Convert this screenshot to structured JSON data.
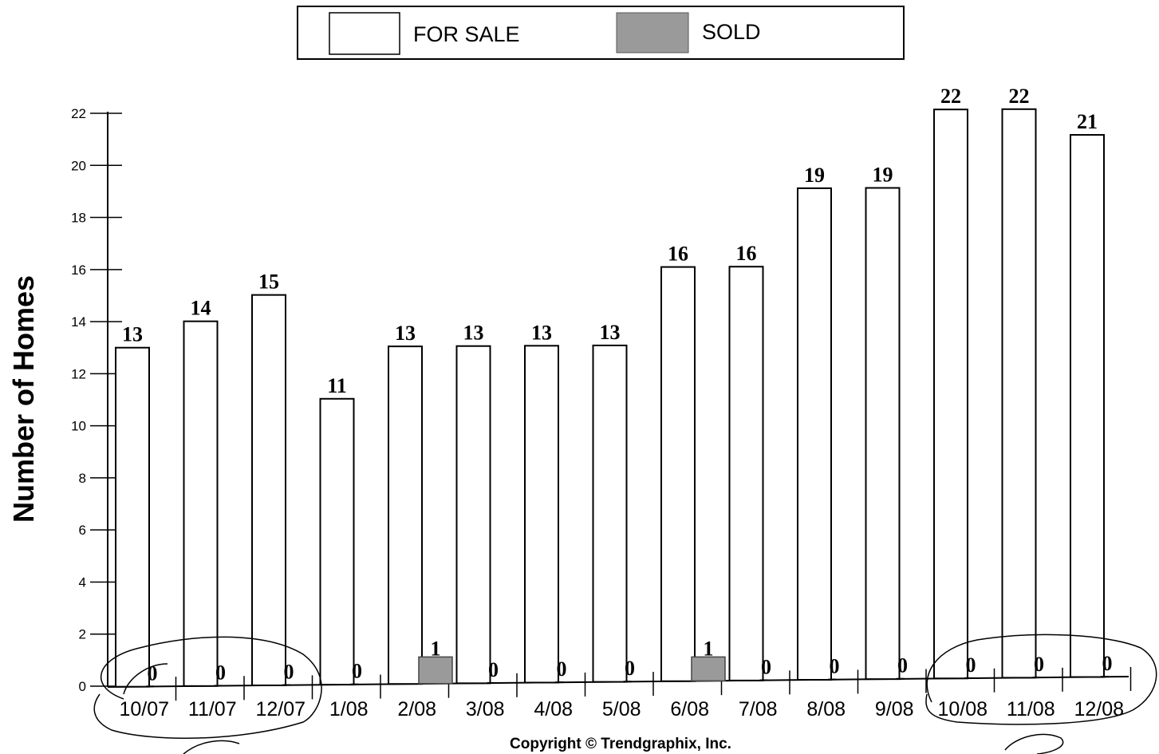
{
  "legend": {
    "for_sale_label": "FOR SALE",
    "sold_label": "SOLD"
  },
  "copyright": "Copyright © Trendgraphix, Inc.",
  "colors": {
    "for_sale_fill": "#ffffff",
    "sold_fill": "#9a9a9a",
    "stroke": "#000000"
  },
  "chart_data": {
    "type": "bar",
    "title": "",
    "xlabel": "",
    "ylabel": "Number of Homes",
    "ylim": [
      0,
      22
    ],
    "yticks": [
      0,
      2,
      4,
      6,
      8,
      10,
      12,
      14,
      16,
      18,
      20,
      22
    ],
    "categories": [
      "10/07",
      "11/07",
      "12/07",
      "1/08",
      "2/08",
      "3/08",
      "4/08",
      "5/08",
      "6/08",
      "7/08",
      "8/08",
      "9/08",
      "10/08",
      "11/08",
      "12/08"
    ],
    "series": [
      {
        "name": "FOR SALE",
        "values": [
          13,
          14,
          15,
          11,
          13,
          13,
          13,
          13,
          16,
          16,
          19,
          19,
          22,
          22,
          21
        ]
      },
      {
        "name": "SOLD",
        "values": [
          0,
          0,
          0,
          0,
          1,
          0,
          0,
          0,
          1,
          0,
          0,
          0,
          0,
          0,
          0
        ]
      }
    ],
    "legend_position": "top-center",
    "grid": false
  }
}
